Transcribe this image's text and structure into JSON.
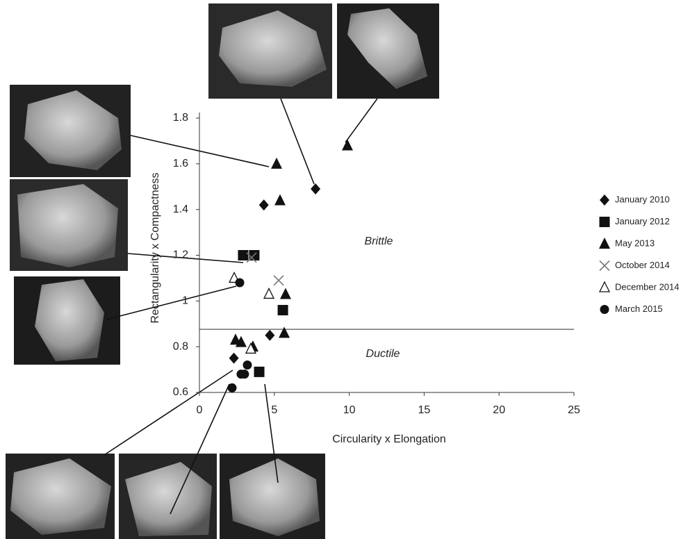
{
  "chart_data": {
    "type": "scatter",
    "x_label": "Circularity x Elongation",
    "y_label": "Rectangularity x Compactness",
    "xlim": [
      0,
      25
    ],
    "xticks": [
      0,
      5,
      10,
      15,
      20,
      25
    ],
    "ylim": [
      0.6,
      1.8
    ],
    "yticks": [
      0.6,
      0.8,
      1,
      1.2,
      1.4,
      1.6,
      1.8
    ],
    "divider": 0.876,
    "annotations": [
      "Brittle",
      "Ductile"
    ],
    "legend": "right",
    "series": [
      {
        "name": "January 2010",
        "marker": "diamond",
        "color": "#111111",
        "x": [
          4.3,
          7.75,
          4.7,
          2.3
        ],
        "values": [
          1.42,
          1.49,
          0.85,
          0.75
        ]
      },
      {
        "name": "January 2012",
        "marker": "square",
        "color": "#111111",
        "x": [
          2.92,
          3.66,
          5.57,
          3.99
        ],
        "values": [
          1.2,
          1.2,
          0.96,
          0.69
        ]
      },
      {
        "name": "May 2013",
        "marker": "triangle",
        "color": "#111111",
        "x": [
          9.88,
          5.15,
          5.38,
          5.75,
          5.66,
          2.41,
          2.78,
          3.57
        ],
        "values": [
          1.68,
          1.6,
          1.44,
          1.03,
          0.86,
          0.83,
          0.82,
          0.8
        ]
      },
      {
        "name": "October 2014",
        "marker": "cross",
        "color": "#777777",
        "x": [
          3.48,
          5.29
        ],
        "values": [
          1.19,
          1.09
        ]
      },
      {
        "name": "December 2014",
        "marker": "open-triangle",
        "color": "#111111",
        "x": [
          2.32,
          4.64,
          3.43
        ],
        "values": [
          1.1,
          1.03,
          0.79
        ]
      },
      {
        "name": "March 2015",
        "marker": "circle",
        "color": "#111111",
        "x": [
          2.69,
          3.2,
          3.01,
          2.78,
          2.18
        ],
        "values": [
          1.08,
          0.72,
          0.68,
          0.68,
          0.62
        ]
      }
    ]
  }
}
